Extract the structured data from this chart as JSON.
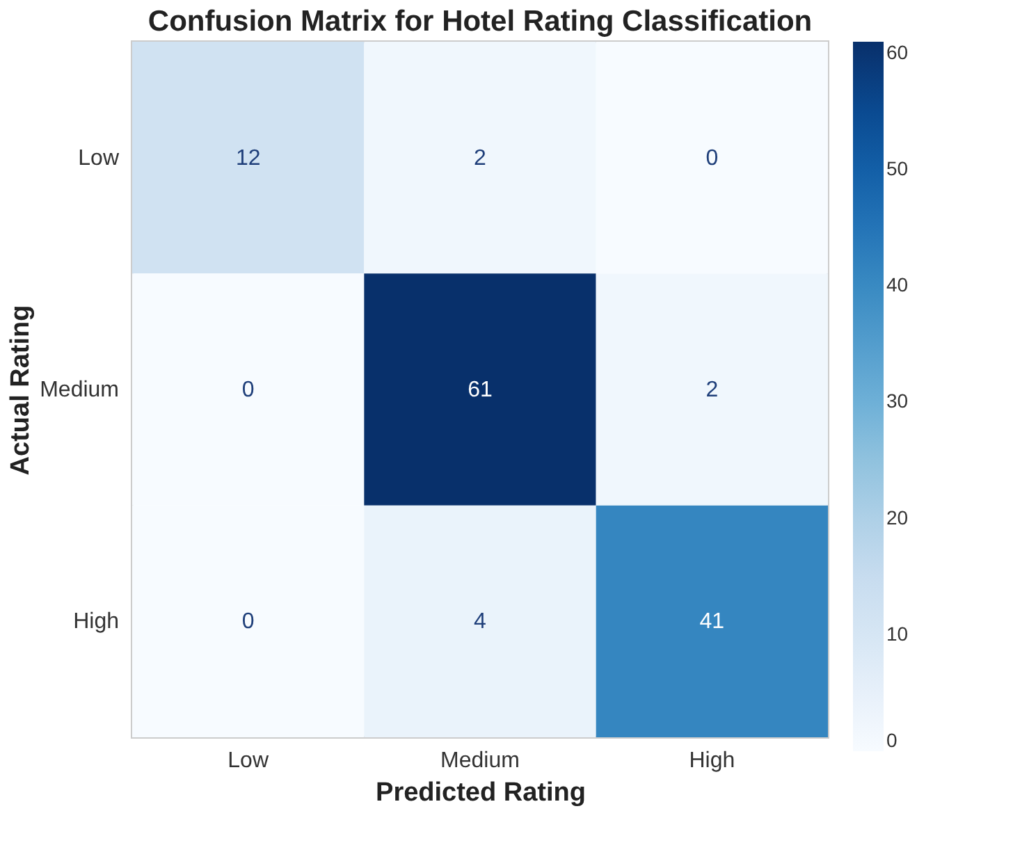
{
  "chart_data": {
    "type": "heatmap",
    "title": "Confusion Matrix for Hotel Rating Classification",
    "xlabel": "Predicted Rating",
    "ylabel": "Actual Rating",
    "categories": [
      "Low",
      "Medium",
      "High"
    ],
    "y_categories": [
      "Low",
      "Medium",
      "High"
    ],
    "cells": [
      [
        12,
        2,
        0
      ],
      [
        0,
        61,
        2
      ],
      [
        0,
        4,
        41
      ]
    ],
    "clim": [
      0,
      61
    ],
    "cticks": [
      0,
      10,
      20,
      30,
      40,
      50,
      60
    ],
    "data_labels": true
  }
}
